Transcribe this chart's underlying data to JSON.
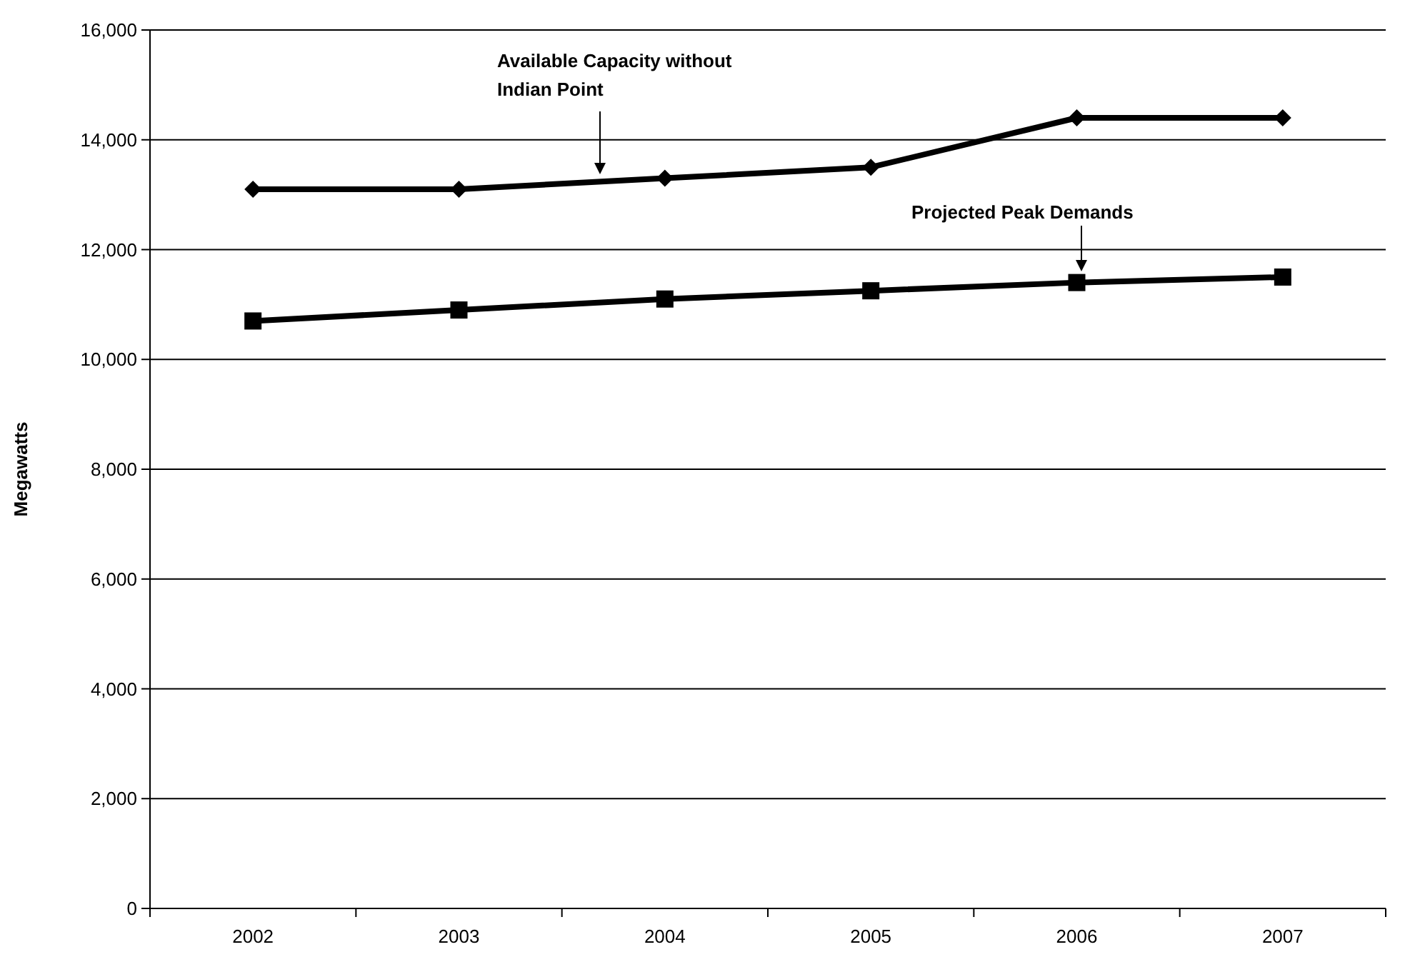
{
  "chart_data": {
    "type": "line",
    "ylabel": "Megawatts",
    "categories": [
      "2002",
      "2003",
      "2004",
      "2005",
      "2006",
      "2007"
    ],
    "series": [
      {
        "color": "#000000",
        "marker": "diamond",
        "values": [
          13100,
          13100,
          13300,
          13500,
          14400,
          14400
        ]
      },
      {
        "color": "#000000",
        "marker": "square",
        "values": [
          10700,
          10900,
          11100,
          11250,
          11400,
          11500
        ]
      }
    ],
    "ylim": [
      0,
      16000
    ],
    "yticks": [
      {
        "value": 0,
        "label": "0"
      },
      {
        "value": 2000,
        "label": "2,000"
      },
      {
        "value": 4000,
        "label": "4,000"
      },
      {
        "value": 6000,
        "label": "6,000"
      },
      {
        "value": 8000,
        "label": "8,000"
      },
      {
        "value": 10000,
        "label": "10,000"
      },
      {
        "value": 12000,
        "label": "12,000"
      },
      {
        "value": 14000,
        "label": "14,000"
      },
      {
        "value": 16000,
        "label": "16,000"
      }
    ],
    "grid": "y",
    "line_style": "solid",
    "annotations": [
      "Available Capacity without Indian Point",
      "Projected Peak Demands"
    ]
  }
}
